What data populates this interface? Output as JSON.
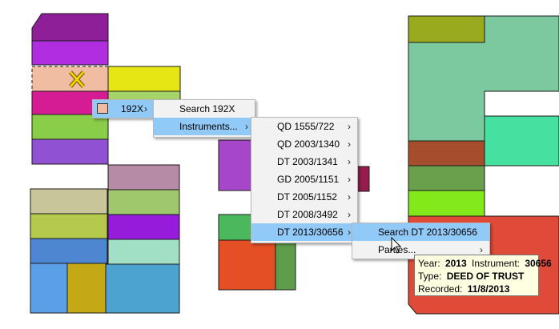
{
  "selected_parcel": {
    "icon": "x-mark-icon",
    "fill": "#f0bca2"
  },
  "menu1": {
    "swatch_icon": "parcel-color-swatch-icon",
    "label": "192X",
    "arrow": "›"
  },
  "menu2": {
    "items": [
      {
        "label": "Search 192X",
        "arrow": ""
      },
      {
        "label": "Instruments...",
        "arrow": "›"
      }
    ]
  },
  "menu3": {
    "items": [
      {
        "label": "QD 1555/722",
        "arrow": "›"
      },
      {
        "label": "QD 2003/1340",
        "arrow": "›"
      },
      {
        "label": "DT 2003/1341",
        "arrow": "›"
      },
      {
        "label": "GD 2005/1151",
        "arrow": "›"
      },
      {
        "label": "DT 2005/1152",
        "arrow": "›"
      },
      {
        "label": "DT 2008/3492",
        "arrow": "›"
      },
      {
        "label": "DT 2013/30656",
        "arrow": "›"
      }
    ]
  },
  "menu4": {
    "items": [
      {
        "label": "Search DT 2013/30656",
        "arrow": ""
      },
      {
        "label": "Parties...",
        "arrow": "›"
      }
    ]
  },
  "tooltip": {
    "year_label": "Year:",
    "year_value": "2013",
    "instrument_label": "Instrument:",
    "instrument_value": "30656",
    "type_label": "Type:",
    "type_value": "DEED OF TRUST",
    "recorded_label": "Recorded:",
    "recorded_value": "11/8/2013"
  },
  "colors": {
    "menu_background": "#f2f2f2",
    "menu_highlight": "#91c9f7",
    "tooltip_background": "#ffffe1"
  },
  "cursor_icon": "arrow-pointer-icon"
}
